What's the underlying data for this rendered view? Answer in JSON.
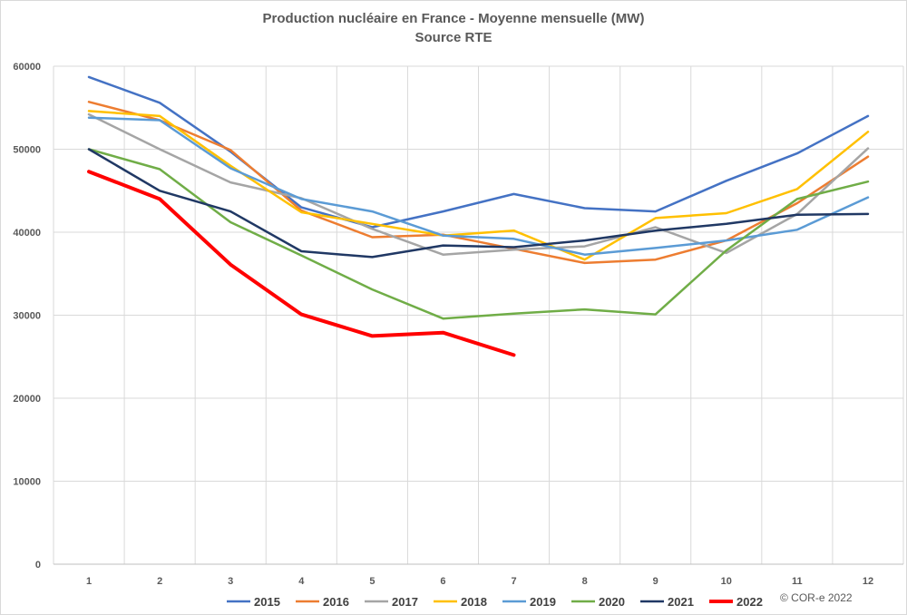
{
  "chart_data": {
    "type": "line",
    "title": "Production nucléaire en France - Moyenne mensuelle (MW)",
    "subtitle": "Source RTE",
    "xlabel": "",
    "ylabel": "",
    "x": [
      1,
      2,
      3,
      4,
      5,
      6,
      7,
      8,
      9,
      10,
      11,
      12
    ],
    "ylim": [
      0,
      60000
    ],
    "yticks": [
      0,
      10000,
      20000,
      30000,
      40000,
      50000,
      60000
    ],
    "grid": "horizontal and vertical",
    "legend_position": "bottom",
    "series": [
      {
        "name": "2015",
        "color": "#4472c4",
        "width": 2.5,
        "values": [
          58700,
          55600,
          49700,
          43000,
          40600,
          42500,
          44600,
          42900,
          42500,
          46200,
          49500,
          54000
        ]
      },
      {
        "name": "2016",
        "color": "#ed7d31",
        "width": 2.5,
        "values": [
          55700,
          53500,
          49900,
          42600,
          39400,
          39700,
          38000,
          36300,
          36700,
          39000,
          43500,
          49100
        ]
      },
      {
        "name": "2017",
        "color": "#a5a5a5",
        "width": 2.5,
        "values": [
          54200,
          50000,
          46000,
          44100,
          40400,
          37300,
          37900,
          38300,
          40600,
          37500,
          42200,
          50100
        ]
      },
      {
        "name": "2018",
        "color": "#ffc000",
        "width": 2.5,
        "values": [
          54600,
          54000,
          48000,
          42400,
          41000,
          39600,
          40200,
          36700,
          41700,
          42300,
          45200,
          52100
        ]
      },
      {
        "name": "2019",
        "color": "#5b9bd5",
        "width": 2.5,
        "values": [
          53800,
          53500,
          47700,
          44000,
          42500,
          39600,
          39200,
          37300,
          38100,
          39000,
          40300,
          44200
        ]
      },
      {
        "name": "2020",
        "color": "#70ad47",
        "width": 2.5,
        "values": [
          50000,
          47600,
          41200,
          37200,
          33100,
          29600,
          30200,
          30700,
          30100,
          37800,
          44000,
          46100
        ]
      },
      {
        "name": "2021",
        "color": "#203864",
        "width": 2.5,
        "values": [
          50000,
          45000,
          42500,
          37700,
          37000,
          38400,
          38200,
          39000,
          40200,
          41000,
          42100,
          42200
        ]
      },
      {
        "name": "2022",
        "color": "#ff0000",
        "width": 4,
        "values": [
          47300,
          44000,
          36100,
          30100,
          27500,
          27900,
          25200,
          null,
          null,
          null,
          null,
          null
        ]
      }
    ]
  },
  "copyright": "© COR-e 2022"
}
